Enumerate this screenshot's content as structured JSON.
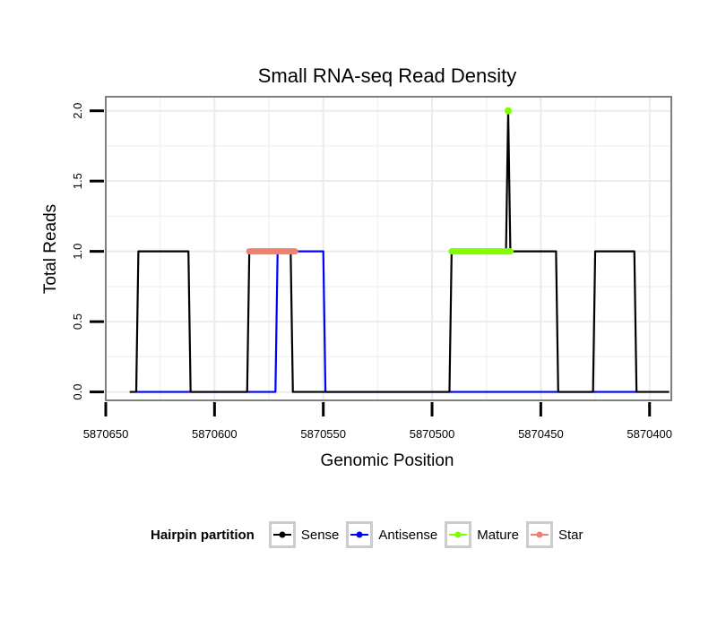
{
  "chart_data": {
    "type": "line",
    "title": "Small RNA-seq Read Density",
    "xlabel": "Genomic Position",
    "ylabel": "Total Reads",
    "xlim": [
      5870650,
      5870390
    ],
    "ylim": [
      -0.06,
      2.1
    ],
    "x_ticks": [
      5870650,
      5870600,
      5870550,
      5870500,
      5870450,
      5870400
    ],
    "x_tick_labels": [
      "5870650",
      "5870600",
      "5870550",
      "5870500",
      "5870450",
      "5870400"
    ],
    "y_ticks": [
      0.0,
      0.5,
      1.0,
      1.5,
      2.0
    ],
    "y_tick_labels": [
      "0.0",
      "0.5",
      "1.0",
      "1.5",
      "2.0"
    ],
    "grid": true,
    "series": [
      {
        "name": "Sense",
        "color": "#000000",
        "line_width": 2.2,
        "x": [
          5870639,
          5870636,
          5870635,
          5870612,
          5870611,
          5870585,
          5870584,
          5870565,
          5870564,
          5870564,
          5870542,
          5870492,
          5870491,
          5870466,
          5870465,
          5870464,
          5870443,
          5870442,
          5870426,
          5870425,
          5870407,
          5870406,
          5870391
        ],
        "y": [
          0,
          0,
          1,
          1,
          0,
          0,
          1,
          1,
          0.02,
          0,
          0,
          0,
          1,
          1,
          2,
          1,
          1,
          0,
          0,
          1,
          1,
          0,
          0
        ]
      },
      {
        "name": "Antisense",
        "color": "#0000ff",
        "line_width": 2.2,
        "x": [
          5870636,
          5870572,
          5870571,
          5870550,
          5870549,
          5870406
        ],
        "y": [
          0,
          0,
          1,
          1,
          0,
          0
        ]
      },
      {
        "name": "Mature",
        "color": "#7fff00",
        "line_width": 7,
        "x": [
          5870491,
          5870464
        ],
        "y": [
          1,
          1
        ],
        "points": [
          {
            "x": 5870465,
            "y": 2
          }
        ]
      },
      {
        "name": "Star",
        "color": "#f08070",
        "line_width": 7,
        "x": [
          5870584,
          5870563
        ],
        "y": [
          1,
          1
        ]
      }
    ]
  },
  "legend": {
    "title": "Hairpin partition",
    "items": [
      {
        "label": "Sense",
        "color": "#000000"
      },
      {
        "label": "Antisense",
        "color": "#0000ff"
      },
      {
        "label": "Mature",
        "color": "#7fff00"
      },
      {
        "label": "Star",
        "color": "#f08070"
      }
    ]
  }
}
